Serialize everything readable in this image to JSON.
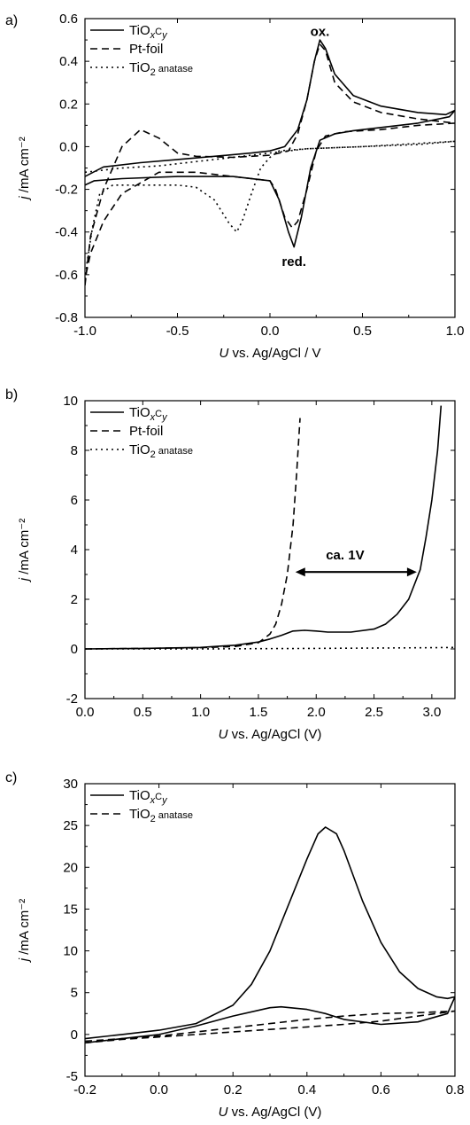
{
  "panels": {
    "a": {
      "letter": "a)",
      "xlabel_unit": " vs. Ag/AgCl / V",
      "ylabel_unit": " /mA cm⁻²"
    },
    "b": {
      "letter": "b)",
      "xlabel_unit": " vs. Ag/AgCl (V)",
      "ylabel_unit": " /mA cm⁻²"
    },
    "c": {
      "letter": "c)",
      "xlabel_unit": " vs. Ag/AgCl (V)",
      "ylabel_unit": " /mA cm⁻²"
    }
  },
  "chart_data": [
    {
      "type": "line",
      "panel": "a",
      "xlabel": "U vs. Ag/AgCl / V",
      "ylabel": "j /mA cm⁻²",
      "xlim": [
        -1.0,
        1.0
      ],
      "ylim": [
        -0.8,
        0.6
      ],
      "xticks": [
        "-1.0",
        "-0.5",
        "0.0",
        "0.5",
        "1.0"
      ],
      "yticks": [
        "-0.8",
        "-0.6",
        "-0.4",
        "-0.2",
        "0.0",
        "0.2",
        "0.4",
        "0.6"
      ],
      "legend_position": "top-left",
      "annotations": [
        {
          "text": "ox.",
          "x": 0.27,
          "y": 0.52
        },
        {
          "text": "red.",
          "x": 0.13,
          "y": -0.56
        }
      ],
      "series": [
        {
          "name": "TiOxCy",
          "style": "solid",
          "points": [
            [
              -1.0,
              -0.14
            ],
            [
              -0.9,
              -0.095
            ],
            [
              -0.7,
              -0.075
            ],
            [
              -0.5,
              -0.06
            ],
            [
              -0.3,
              -0.045
            ],
            [
              -0.1,
              -0.03
            ],
            [
              0.0,
              -0.02
            ],
            [
              0.08,
              0.0
            ],
            [
              0.15,
              0.08
            ],
            [
              0.2,
              0.22
            ],
            [
              0.24,
              0.4
            ],
            [
              0.27,
              0.5
            ],
            [
              0.3,
              0.46
            ],
            [
              0.35,
              0.34
            ],
            [
              0.45,
              0.24
            ],
            [
              0.6,
              0.19
            ],
            [
              0.8,
              0.16
            ],
            [
              0.95,
              0.15
            ],
            [
              1.0,
              0.17
            ],
            [
              0.97,
              0.14
            ],
            [
              0.8,
              0.11
            ],
            [
              0.6,
              0.09
            ],
            [
              0.45,
              0.075
            ],
            [
              0.35,
              0.06
            ],
            [
              0.27,
              0.03
            ],
            [
              0.22,
              -0.1
            ],
            [
              0.17,
              -0.33
            ],
            [
              0.13,
              -0.47
            ],
            [
              0.1,
              -0.4
            ],
            [
              0.05,
              -0.25
            ],
            [
              0.0,
              -0.16
            ],
            [
              -0.2,
              -0.14
            ],
            [
              -0.5,
              -0.14
            ],
            [
              -0.8,
              -0.15
            ],
            [
              -0.95,
              -0.16
            ],
            [
              -1.0,
              -0.18
            ]
          ]
        },
        {
          "name": "Pt-foil",
          "style": "dashed",
          "points": [
            [
              -1.0,
              -0.65
            ],
            [
              -0.97,
              -0.42
            ],
            [
              -0.9,
              -0.2
            ],
            [
              -0.8,
              0.0
            ],
            [
              -0.7,
              0.08
            ],
            [
              -0.6,
              0.04
            ],
            [
              -0.5,
              -0.03
            ],
            [
              -0.4,
              -0.045
            ],
            [
              -0.2,
              -0.05
            ],
            [
              0.0,
              -0.04
            ],
            [
              0.1,
              -0.02
            ],
            [
              0.15,
              0.06
            ],
            [
              0.2,
              0.22
            ],
            [
              0.24,
              0.4
            ],
            [
              0.27,
              0.48
            ],
            [
              0.3,
              0.45
            ],
            [
              0.35,
              0.3
            ],
            [
              0.45,
              0.21
            ],
            [
              0.6,
              0.16
            ],
            [
              0.8,
              0.13
            ],
            [
              1.0,
              0.11
            ],
            [
              0.8,
              0.1
            ],
            [
              0.6,
              0.08
            ],
            [
              0.4,
              0.07
            ],
            [
              0.3,
              0.05
            ],
            [
              0.25,
              -0.02
            ],
            [
              0.2,
              -0.2
            ],
            [
              0.15,
              -0.35
            ],
            [
              0.12,
              -0.38
            ],
            [
              0.08,
              -0.33
            ],
            [
              0.03,
              -0.2
            ],
            [
              0.0,
              -0.16
            ],
            [
              -0.2,
              -0.14
            ],
            [
              -0.4,
              -0.12
            ],
            [
              -0.6,
              -0.12
            ],
            [
              -0.8,
              -0.22
            ],
            [
              -0.9,
              -0.35
            ],
            [
              -0.97,
              -0.5
            ],
            [
              -1.0,
              -0.62
            ]
          ]
        },
        {
          "name": "TiO2 anatase",
          "style": "dotted",
          "points": [
            [
              -1.0,
              -0.12
            ],
            [
              -0.8,
              -0.1
            ],
            [
              -0.6,
              -0.09
            ],
            [
              -0.4,
              -0.07
            ],
            [
              -0.2,
              -0.05
            ],
            [
              0.0,
              -0.03
            ],
            [
              0.2,
              -0.01
            ],
            [
              0.5,
              0.0
            ],
            [
              0.8,
              0.015
            ],
            [
              1.0,
              0.025
            ],
            [
              0.8,
              0.01
            ],
            [
              0.5,
              0.0
            ],
            [
              0.2,
              -0.01
            ],
            [
              0.05,
              -0.02
            ],
            [
              0.0,
              -0.05
            ],
            [
              -0.05,
              -0.1
            ],
            [
              -0.1,
              -0.22
            ],
            [
              -0.15,
              -0.35
            ],
            [
              -0.18,
              -0.4
            ],
            [
              -0.22,
              -0.36
            ],
            [
              -0.3,
              -0.25
            ],
            [
              -0.4,
              -0.19
            ],
            [
              -0.5,
              -0.18
            ],
            [
              -0.6,
              -0.18
            ],
            [
              -0.75,
              -0.18
            ],
            [
              -0.85,
              -0.18
            ],
            [
              -0.92,
              -0.22
            ],
            [
              -0.96,
              -0.38
            ],
            [
              -0.99,
              -0.55
            ],
            [
              -1.0,
              -0.64
            ]
          ]
        }
      ]
    },
    {
      "type": "line",
      "panel": "b",
      "xlabel": "U vs. Ag/AgCl (V)",
      "ylabel": "j /mA cm⁻²",
      "xlim": [
        0.0,
        3.2
      ],
      "ylim": [
        -2,
        10
      ],
      "xticks": [
        "0.0",
        "0.5",
        "1.0",
        "1.5",
        "2.0",
        "2.5",
        "3.0"
      ],
      "yticks": [
        "-2",
        "0",
        "2",
        "4",
        "6",
        "8",
        "10"
      ],
      "legend_position": "top-left",
      "annotations": [
        {
          "text": "ca. 1V",
          "x": 2.25,
          "y": 3.6,
          "arrow_from": 1.82,
          "arrow_to": 2.87,
          "arrow_y": 3.1
        }
      ],
      "series": [
        {
          "name": "TiOxCy",
          "style": "solid",
          "points": [
            [
              0.0,
              0.0
            ],
            [
              0.5,
              0.02
            ],
            [
              1.0,
              0.06
            ],
            [
              1.3,
              0.15
            ],
            [
              1.5,
              0.28
            ],
            [
              1.6,
              0.4
            ],
            [
              1.7,
              0.55
            ],
            [
              1.8,
              0.72
            ],
            [
              1.9,
              0.75
            ],
            [
              2.0,
              0.72
            ],
            [
              2.1,
              0.68
            ],
            [
              2.3,
              0.68
            ],
            [
              2.5,
              0.8
            ],
            [
              2.6,
              1.0
            ],
            [
              2.7,
              1.4
            ],
            [
              2.8,
              2.0
            ],
            [
              2.9,
              3.2
            ],
            [
              2.95,
              4.5
            ],
            [
              3.0,
              6.0
            ],
            [
              3.05,
              8.0
            ],
            [
              3.08,
              9.8
            ]
          ]
        },
        {
          "name": "Pt-foil",
          "style": "dashed",
          "points": [
            [
              0.0,
              0.0
            ],
            [
              0.5,
              0.02
            ],
            [
              1.0,
              0.05
            ],
            [
              1.3,
              0.1
            ],
            [
              1.5,
              0.25
            ],
            [
              1.6,
              0.6
            ],
            [
              1.65,
              1.0
            ],
            [
              1.7,
              1.8
            ],
            [
              1.75,
              3.0
            ],
            [
              1.8,
              5.0
            ],
            [
              1.83,
              7.0
            ],
            [
              1.86,
              9.3
            ]
          ]
        },
        {
          "name": "TiO2 anatase",
          "style": "dotted",
          "points": [
            [
              0.0,
              0.0
            ],
            [
              1.0,
              0.0
            ],
            [
              2.0,
              0.02
            ],
            [
              3.0,
              0.05
            ],
            [
              3.2,
              0.06
            ]
          ]
        }
      ]
    },
    {
      "type": "line",
      "panel": "c",
      "xlabel": "U vs. Ag/AgCl (V)",
      "ylabel": "j /mA cm⁻²",
      "xlim": [
        -0.2,
        0.8
      ],
      "ylim": [
        -5,
        30
      ],
      "xticks": [
        "-0.2",
        "0.0",
        "0.2",
        "0.4",
        "0.6",
        "0.8"
      ],
      "yticks": [
        "-5",
        "0",
        "5",
        "10",
        "15",
        "20",
        "25",
        "30"
      ],
      "legend_position": "top-left",
      "annotations": [],
      "series": [
        {
          "name": "TiOxCy",
          "style": "solid",
          "points": [
            [
              -0.2,
              -0.5
            ],
            [
              -0.1,
              0.0
            ],
            [
              0.0,
              0.5
            ],
            [
              0.1,
              1.3
            ],
            [
              0.2,
              3.5
            ],
            [
              0.25,
              6.0
            ],
            [
              0.3,
              10.0
            ],
            [
              0.35,
              15.5
            ],
            [
              0.4,
              21.0
            ],
            [
              0.43,
              24.0
            ],
            [
              0.45,
              24.8
            ],
            [
              0.48,
              24.0
            ],
            [
              0.5,
              22.0
            ],
            [
              0.55,
              16.0
            ],
            [
              0.6,
              11.0
            ],
            [
              0.65,
              7.5
            ],
            [
              0.7,
              5.5
            ],
            [
              0.75,
              4.5
            ],
            [
              0.78,
              4.3
            ],
            [
              0.8,
              4.5
            ],
            [
              0.78,
              2.5
            ],
            [
              0.7,
              1.5
            ],
            [
              0.6,
              1.2
            ],
            [
              0.5,
              1.8
            ],
            [
              0.45,
              2.5
            ],
            [
              0.4,
              3.0
            ],
            [
              0.33,
              3.3
            ],
            [
              0.3,
              3.2
            ],
            [
              0.2,
              2.2
            ],
            [
              0.1,
              1.0
            ],
            [
              0.0,
              0.0
            ],
            [
              -0.1,
              -0.5
            ],
            [
              -0.2,
              -1.0
            ]
          ]
        },
        {
          "name": "TiO2 anatase",
          "style": "dashed",
          "points": [
            [
              -0.2,
              -0.8
            ],
            [
              -0.1,
              -0.5
            ],
            [
              0.0,
              -0.2
            ],
            [
              0.1,
              0.3
            ],
            [
              0.2,
              0.8
            ],
            [
              0.3,
              1.3
            ],
            [
              0.4,
              1.8
            ],
            [
              0.5,
              2.2
            ],
            [
              0.6,
              2.5
            ],
            [
              0.7,
              2.6
            ],
            [
              0.8,
              2.8
            ],
            [
              0.7,
              2.2
            ],
            [
              0.6,
              1.6
            ],
            [
              0.5,
              1.2
            ],
            [
              0.4,
              0.9
            ],
            [
              0.3,
              0.6
            ],
            [
              0.2,
              0.3
            ],
            [
              0.1,
              0.0
            ],
            [
              0.0,
              -0.3
            ],
            [
              -0.1,
              -0.6
            ],
            [
              -0.2,
              -1.0
            ]
          ]
        }
      ]
    }
  ]
}
